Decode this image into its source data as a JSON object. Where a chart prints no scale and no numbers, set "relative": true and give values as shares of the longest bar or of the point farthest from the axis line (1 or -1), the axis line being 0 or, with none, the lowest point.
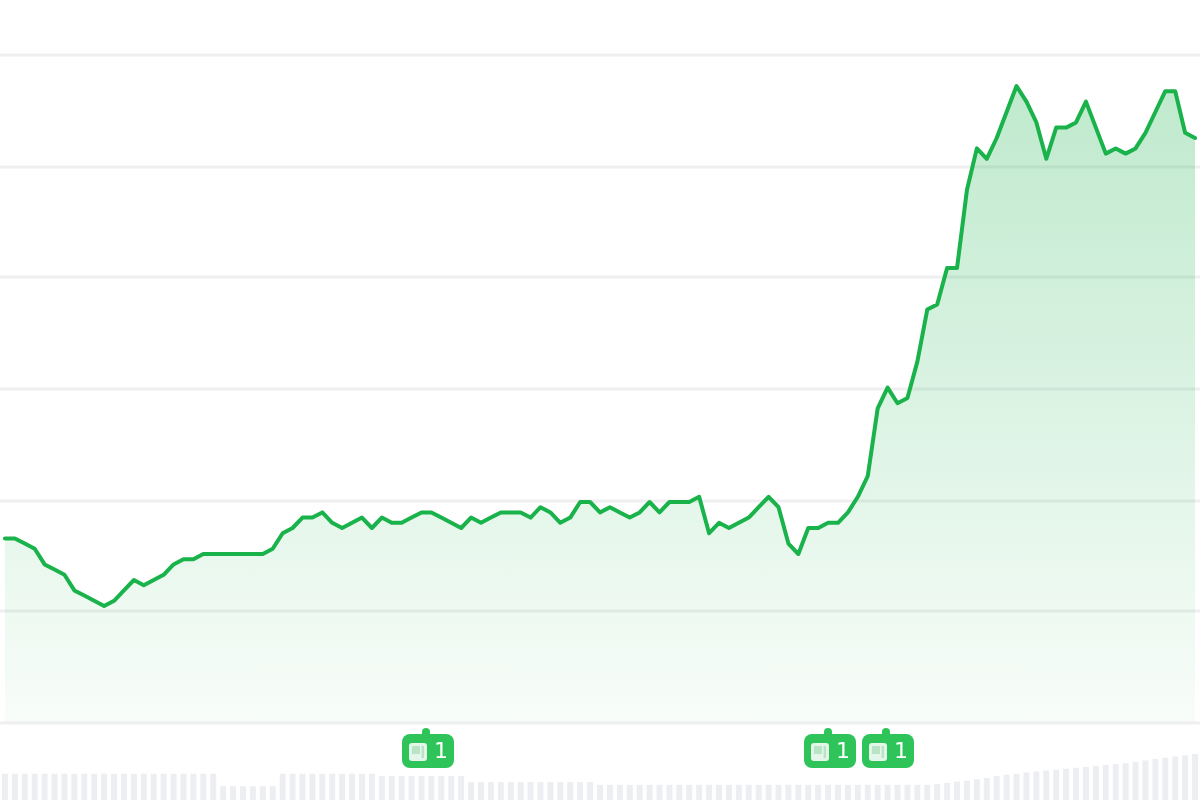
{
  "chart_data": [
    {
      "type": "area",
      "relative": true,
      "grid": "y",
      "categories": [
        null,
        null,
        null,
        null,
        null,
        null,
        null,
        null,
        null,
        null,
        null,
        null,
        null,
        null,
        null,
        null,
        null,
        null,
        null,
        null,
        null,
        null,
        null,
        null,
        null,
        null,
        null,
        null,
        null,
        null,
        null,
        null,
        null,
        null,
        null,
        null,
        null,
        null,
        null,
        null,
        null,
        null,
        null,
        null,
        null,
        null,
        null,
        null,
        null,
        null,
        null,
        null,
        null,
        null,
        null,
        null,
        null,
        null,
        null,
        null,
        null,
        null,
        null,
        null,
        null,
        null,
        null,
        null,
        null,
        null,
        null,
        null,
        null,
        null,
        null,
        null,
        null,
        null,
        null,
        null,
        null,
        null,
        null,
        null,
        null,
        null,
        null,
        null,
        null,
        null,
        null,
        null,
        null,
        null,
        null,
        null,
        null,
        null,
        null,
        null,
        null,
        null,
        null,
        null,
        null,
        null,
        null,
        null,
        null,
        null,
        null,
        null,
        null,
        null,
        null,
        null,
        null,
        null,
        null,
        null,
        null
      ],
      "series": [
        {
          "color": "#19b24b",
          "values": [
            0.13,
            0.13,
            0.12,
            0.11,
            0.08,
            0.07,
            0.06,
            0.03,
            0.02,
            0.01,
            0,
            0.01,
            0.03,
            0.05,
            0.04,
            0.05,
            0.06,
            0.08,
            0.09,
            0.09,
            0.1,
            0.1,
            0.1,
            0.1,
            0.1,
            0.1,
            0.1,
            0.11,
            0.14,
            0.15,
            0.17,
            0.17,
            0.18,
            0.16,
            0.15,
            0.16,
            0.17,
            0.15,
            0.17,
            0.16,
            0.16,
            0.17,
            0.18,
            0.18,
            0.17,
            0.16,
            0.15,
            0.17,
            0.16,
            0.17,
            0.18,
            0.18,
            0.18,
            0.17,
            0.19,
            0.18,
            0.16,
            0.17,
            0.2,
            0.2,
            0.18,
            0.19,
            0.18,
            0.17,
            0.18,
            0.2,
            0.18,
            0.2,
            0.2,
            0.2,
            0.21,
            0.14,
            0.16,
            0.15,
            0.16,
            0.17,
            0.19,
            0.21,
            0.19,
            0.12,
            0.1,
            0.15,
            0.15,
            0.16,
            0.16,
            0.18,
            0.21,
            0.25,
            0.38,
            0.42,
            0.39,
            0.4,
            0.47,
            0.57,
            0.58,
            0.65,
            0.65,
            0.8,
            0.88,
            0.86,
            0.9,
            0.95,
            1,
            0.97,
            0.93,
            0.86,
            0.92,
            0.92,
            0.93,
            0.97,
            0.92,
            0.87,
            0.88,
            0.87,
            0.88,
            0.91,
            0.95,
            0.99,
            0.99,
            0.91,
            0.9
          ]
        }
      ],
      "annotations": [
        "1",
        "1",
        "1"
      ]
    },
    {
      "type": "bar",
      "relative": true,
      "categories": [
        null,
        null,
        null,
        null,
        null,
        null,
        null,
        null,
        null,
        null,
        null,
        null,
        null,
        null,
        null,
        null,
        null,
        null,
        null,
        null,
        null,
        null,
        null,
        null,
        null,
        null,
        null,
        null,
        null,
        null,
        null,
        null,
        null,
        null,
        null,
        null,
        null,
        null,
        null,
        null,
        null,
        null,
        null,
        null,
        null,
        null,
        null,
        null,
        null,
        null,
        null,
        null,
        null,
        null,
        null,
        null,
        null,
        null,
        null,
        null,
        null,
        null,
        null,
        null,
        null,
        null,
        null,
        null,
        null,
        null,
        null,
        null,
        null,
        null,
        null,
        null,
        null,
        null,
        null,
        null,
        null,
        null,
        null,
        null,
        null,
        null,
        null,
        null,
        null,
        null,
        null,
        null,
        null,
        null,
        null,
        null,
        null,
        null,
        null,
        null,
        null,
        null,
        null,
        null,
        null,
        null,
        null,
        null,
        null,
        null,
        null,
        null,
        null,
        null,
        null,
        null,
        null,
        null,
        null,
        null,
        null
      ],
      "series": [
        {
          "color": "#eceef2",
          "values": [
            0.57,
            0.57,
            0.57,
            0.57,
            0.57,
            0.57,
            0.57,
            0.57,
            0.57,
            0.57,
            0.57,
            0.57,
            0.57,
            0.57,
            0.57,
            0.57,
            0.57,
            0.57,
            0.57,
            0.57,
            0.57,
            0.57,
            0.3,
            0.3,
            0.3,
            0.3,
            0.3,
            0.3,
            0.57,
            0.57,
            0.57,
            0.57,
            0.57,
            0.57,
            0.57,
            0.57,
            0.57,
            0.57,
            0.52,
            0.52,
            0.52,
            0.52,
            0.52,
            0.52,
            0.52,
            0.52,
            0.52,
            0.39,
            0.39,
            0.39,
            0.39,
            0.39,
            0.39,
            0.39,
            0.39,
            0.39,
            0.39,
            0.39,
            0.39,
            0.39,
            0.33,
            0.33,
            0.33,
            0.33,
            0.33,
            0.33,
            0.33,
            0.33,
            0.33,
            0.33,
            0.33,
            0.33,
            0.33,
            0.33,
            0.33,
            0.33,
            0.33,
            0.33,
            0.33,
            0.33,
            0.33,
            0.33,
            0.33,
            0.33,
            0.33,
            0.33,
            0.33,
            0.33,
            0.33,
            0.33,
            0.33,
            0.33,
            0.33,
            0.33,
            0.35,
            0.37,
            0.4,
            0.42,
            0.45,
            0.48,
            0.52,
            0.55,
            0.57,
            0.6,
            0.62,
            0.64,
            0.66,
            0.68,
            0.7,
            0.72,
            0.74,
            0.76,
            0.78,
            0.8,
            0.83,
            0.86,
            0.89,
            0.92,
            0.95,
            0.97,
            1.0
          ]
        }
      ]
    }
  ]
}
